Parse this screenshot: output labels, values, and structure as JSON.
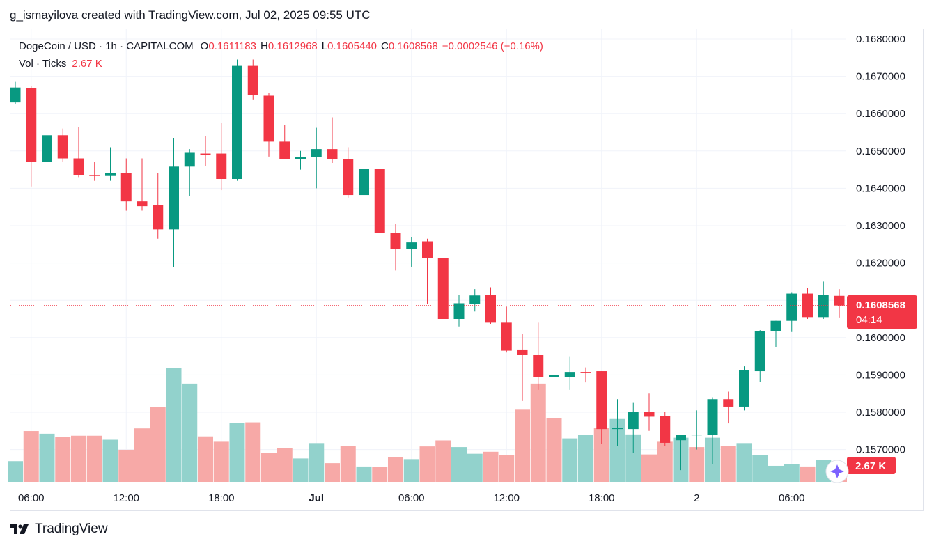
{
  "header": {
    "caption": "g_ismayilova created with TradingView.com, Jul 02, 2025 09:55 UTC"
  },
  "legend": {
    "symbol": "DogeCoin / USD · 1h · CAPITALCOM",
    "o_key": "O",
    "o_val": "0.1611183",
    "h_key": "H",
    "h_val": "0.1612968",
    "l_key": "L",
    "l_val": "0.1605440",
    "c_key": "C",
    "c_val": "0.1608568",
    "change": "−0.0002546 (−0.16%)",
    "vol_label": "Vol · Ticks",
    "vol_val": "2.67 K"
  },
  "price_badge": {
    "price": "0.1608568",
    "countdown": "04:14"
  },
  "volume_badge": "2.67 K",
  "footer": {
    "brand": "TradingView"
  },
  "colors": {
    "up": "#089981",
    "down": "#f23645",
    "vol_up": "#92d2cc",
    "vol_down": "#f7a9a7",
    "grid": "#f0f3fa"
  },
  "chart_data": {
    "type": "candlestick",
    "symbol": "DogeCoin / USD",
    "interval": "1h",
    "ylim": [
      0.1563,
      0.1682
    ],
    "yticks": [
      "0.1680000",
      "0.1670000",
      "0.1660000",
      "0.1650000",
      "0.1640000",
      "0.1630000",
      "0.1620000",
      "0.1610000",
      "0.1600000",
      "0.1590000",
      "0.1580000",
      "0.1570000"
    ],
    "xticks": [
      {
        "label": "06:00",
        "index": 1
      },
      {
        "label": "12:00",
        "index": 7
      },
      {
        "label": "18:00",
        "index": 13
      },
      {
        "label": "Jul",
        "index": 19
      },
      {
        "label": "06:00",
        "index": 25
      },
      {
        "label": "12:00",
        "index": 31
      },
      {
        "label": "18:00",
        "index": 37
      },
      {
        "label": "2",
        "index": 43
      },
      {
        "label": "06:00",
        "index": 49
      }
    ],
    "candles": [
      {
        "o": 0.1663,
        "h": 0.16685,
        "l": 0.16625,
        "c": 0.1667
      },
      {
        "o": 0.16668,
        "h": 0.16675,
        "l": 0.16405,
        "c": 0.1647
      },
      {
        "o": 0.1647,
        "h": 0.1657,
        "l": 0.16435,
        "c": 0.16542
      },
      {
        "o": 0.16542,
        "h": 0.1656,
        "l": 0.1647,
        "c": 0.1648
      },
      {
        "o": 0.1648,
        "h": 0.16565,
        "l": 0.1643,
        "c": 0.16435
      },
      {
        "o": 0.16435,
        "h": 0.1647,
        "l": 0.1642,
        "c": 0.16433
      },
      {
        "o": 0.16433,
        "h": 0.1651,
        "l": 0.1642,
        "c": 0.1644
      },
      {
        "o": 0.1644,
        "h": 0.1648,
        "l": 0.1634,
        "c": 0.16365
      },
      {
        "o": 0.16365,
        "h": 0.1648,
        "l": 0.1634,
        "c": 0.16352
      },
      {
        "o": 0.16355,
        "h": 0.1644,
        "l": 0.16265,
        "c": 0.1629
      },
      {
        "o": 0.1629,
        "h": 0.16535,
        "l": 0.1619,
        "c": 0.16458
      },
      {
        "o": 0.16458,
        "h": 0.16505,
        "l": 0.1638,
        "c": 0.16495
      },
      {
        "o": 0.16493,
        "h": 0.1654,
        "l": 0.1646,
        "c": 0.1649
      },
      {
        "o": 0.16493,
        "h": 0.16575,
        "l": 0.16395,
        "c": 0.16425
      },
      {
        "o": 0.16425,
        "h": 0.16745,
        "l": 0.1642,
        "c": 0.16728
      },
      {
        "o": 0.16728,
        "h": 0.16745,
        "l": 0.16638,
        "c": 0.1665
      },
      {
        "o": 0.16648,
        "h": 0.16655,
        "l": 0.16485,
        "c": 0.16525
      },
      {
        "o": 0.16525,
        "h": 0.1657,
        "l": 0.1648,
        "c": 0.16478
      },
      {
        "o": 0.16478,
        "h": 0.165,
        "l": 0.1645,
        "c": 0.16483
      },
      {
        "o": 0.16483,
        "h": 0.16562,
        "l": 0.164,
        "c": 0.16505
      },
      {
        "o": 0.16505,
        "h": 0.1659,
        "l": 0.16468,
        "c": 0.16478
      },
      {
        "o": 0.16478,
        "h": 0.1651,
        "l": 0.16375,
        "c": 0.16382
      },
      {
        "o": 0.16382,
        "h": 0.1646,
        "l": 0.1638,
        "c": 0.16452
      },
      {
        "o": 0.16452,
        "h": 0.16452,
        "l": 0.1628,
        "c": 0.1628
      },
      {
        "o": 0.1628,
        "h": 0.16305,
        "l": 0.1618,
        "c": 0.16237
      },
      {
        "o": 0.16237,
        "h": 0.1627,
        "l": 0.1619,
        "c": 0.16255
      },
      {
        "o": 0.16258,
        "h": 0.16265,
        "l": 0.1609,
        "c": 0.16213
      },
      {
        "o": 0.16213,
        "h": 0.16213,
        "l": 0.1605,
        "c": 0.1605
      },
      {
        "o": 0.1605,
        "h": 0.16115,
        "l": 0.1603,
        "c": 0.16092
      },
      {
        "o": 0.1609,
        "h": 0.1613,
        "l": 0.1607,
        "c": 0.16113
      },
      {
        "o": 0.16115,
        "h": 0.16135,
        "l": 0.16035,
        "c": 0.1604
      },
      {
        "o": 0.1604,
        "h": 0.16083,
        "l": 0.1596,
        "c": 0.15965
      },
      {
        "o": 0.15968,
        "h": 0.1601,
        "l": 0.1583,
        "c": 0.15953
      },
      {
        "o": 0.15953,
        "h": 0.1604,
        "l": 0.1586,
        "c": 0.15895
      },
      {
        "o": 0.15895,
        "h": 0.1596,
        "l": 0.1587,
        "c": 0.159
      },
      {
        "o": 0.15895,
        "h": 0.1595,
        "l": 0.1586,
        "c": 0.15908
      },
      {
        "o": 0.15908,
        "h": 0.1592,
        "l": 0.1588,
        "c": 0.15907
      },
      {
        "o": 0.1591,
        "h": 0.1591,
        "l": 0.15715,
        "c": 0.15755
      },
      {
        "o": 0.15755,
        "h": 0.15835,
        "l": 0.1571,
        "c": 0.15758
      },
      {
        "o": 0.15755,
        "h": 0.15825,
        "l": 0.1569,
        "c": 0.158
      },
      {
        "o": 0.158,
        "h": 0.1585,
        "l": 0.1575,
        "c": 0.15788
      },
      {
        "o": 0.1579,
        "h": 0.158,
        "l": 0.1571,
        "c": 0.15718
      },
      {
        "o": 0.15725,
        "h": 0.1574,
        "l": 0.15645,
        "c": 0.1574
      },
      {
        "o": 0.1574,
        "h": 0.15805,
        "l": 0.157,
        "c": 0.1574
      },
      {
        "o": 0.1574,
        "h": 0.1584,
        "l": 0.1566,
        "c": 0.15835
      },
      {
        "o": 0.15835,
        "h": 0.15855,
        "l": 0.1577,
        "c": 0.15815
      },
      {
        "o": 0.15815,
        "h": 0.15923,
        "l": 0.15805,
        "c": 0.15912
      },
      {
        "o": 0.1591,
        "h": 0.1602,
        "l": 0.15882,
        "c": 0.16017
      },
      {
        "o": 0.16017,
        "h": 0.16045,
        "l": 0.15975,
        "c": 0.16045
      },
      {
        "o": 0.16045,
        "h": 0.1612,
        "l": 0.16015,
        "c": 0.16118
      },
      {
        "o": 0.16118,
        "h": 0.16132,
        "l": 0.1605,
        "c": 0.16055
      },
      {
        "o": 0.16055,
        "h": 0.1615,
        "l": 0.1605,
        "c": 0.16115
      },
      {
        "o": 0.16112,
        "h": 0.1613,
        "l": 0.16054,
        "c": 0.16086
      }
    ],
    "volume": [
      {
        "v": 0.31,
        "up": true
      },
      {
        "v": 0.76,
        "up": false
      },
      {
        "v": 0.72,
        "up": true
      },
      {
        "v": 0.67,
        "up": false
      },
      {
        "v": 0.69,
        "up": false
      },
      {
        "v": 0.69,
        "up": false
      },
      {
        "v": 0.63,
        "up": true
      },
      {
        "v": 0.48,
        "up": false
      },
      {
        "v": 0.8,
        "up": false
      },
      {
        "v": 1.12,
        "up": false
      },
      {
        "v": 1.7,
        "up": true
      },
      {
        "v": 1.47,
        "up": true
      },
      {
        "v": 0.68,
        "up": false
      },
      {
        "v": 0.6,
        "up": false
      },
      {
        "v": 0.88,
        "up": true
      },
      {
        "v": 0.89,
        "up": false
      },
      {
        "v": 0.43,
        "up": false
      },
      {
        "v": 0.5,
        "up": false
      },
      {
        "v": 0.35,
        "up": true
      },
      {
        "v": 0.58,
        "up": true
      },
      {
        "v": 0.28,
        "up": false
      },
      {
        "v": 0.54,
        "up": false
      },
      {
        "v": 0.23,
        "up": true
      },
      {
        "v": 0.22,
        "up": false
      },
      {
        "v": 0.37,
        "up": false
      },
      {
        "v": 0.34,
        "up": true
      },
      {
        "v": 0.53,
        "up": false
      },
      {
        "v": 0.62,
        "up": false
      },
      {
        "v": 0.52,
        "up": true
      },
      {
        "v": 0.42,
        "up": true
      },
      {
        "v": 0.45,
        "up": false
      },
      {
        "v": 0.4,
        "up": false
      },
      {
        "v": 1.08,
        "up": false
      },
      {
        "v": 1.47,
        "up": false
      },
      {
        "v": 0.95,
        "up": false
      },
      {
        "v": 0.65,
        "up": true
      },
      {
        "v": 0.7,
        "up": true
      },
      {
        "v": 0.81,
        "up": false
      },
      {
        "v": 0.94,
        "up": true
      },
      {
        "v": 0.71,
        "up": true
      },
      {
        "v": 0.41,
        "up": false
      },
      {
        "v": 0.6,
        "up": false
      },
      {
        "v": 0.66,
        "up": true
      },
      {
        "v": 0.52,
        "up": false
      },
      {
        "v": 0.66,
        "up": true
      },
      {
        "v": 0.54,
        "up": false
      },
      {
        "v": 0.58,
        "up": true
      },
      {
        "v": 0.4,
        "up": true
      },
      {
        "v": 0.24,
        "up": true
      },
      {
        "v": 0.27,
        "up": true
      },
      {
        "v": 0.23,
        "up": false
      },
      {
        "v": 0.33,
        "up": true
      },
      {
        "v": 0.2,
        "up": false
      }
    ]
  }
}
